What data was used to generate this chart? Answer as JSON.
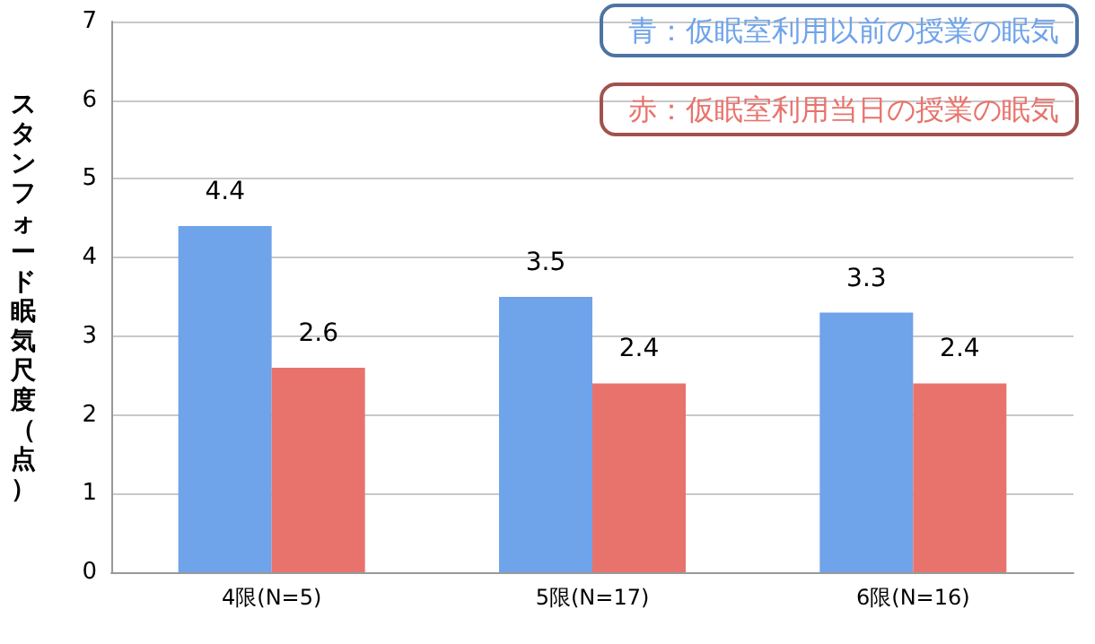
{
  "chart_data": {
    "type": "bar",
    "ylabel": "スタンフォード眠気尺度（点）",
    "categories": [
      "4限(N=5)",
      "5限(N=17)",
      "6限(N=16)"
    ],
    "series": [
      {
        "name": "青：仮眠室利用以前の授業の眠気",
        "color": "#6fa3ea",
        "values": [
          4.4,
          3.5,
          3.3
        ]
      },
      {
        "name": "赤：仮眠室利用当日の授業の眠気",
        "color": "#e8736c",
        "values": [
          2.6,
          2.4,
          2.4
        ]
      }
    ],
    "ylim": [
      0,
      7
    ],
    "yticks": [
      0,
      1,
      2,
      3,
      4,
      5,
      6,
      7
    ],
    "grid": "y",
    "data_labels": true,
    "legend": "top right"
  }
}
